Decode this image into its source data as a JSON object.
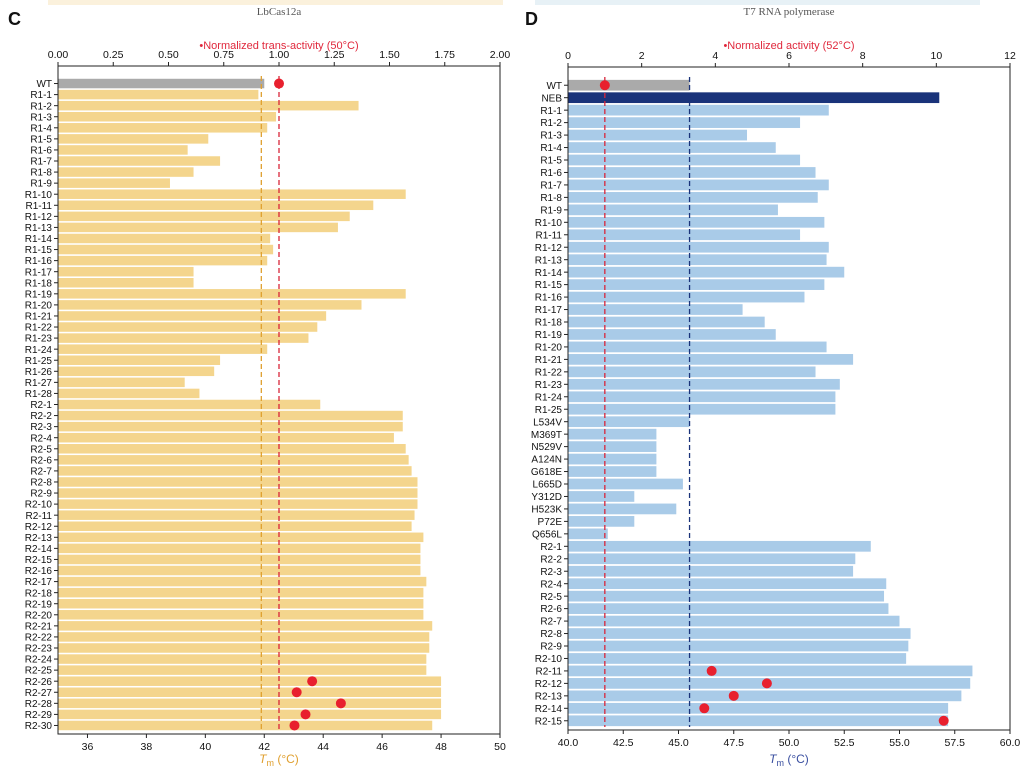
{
  "chart_data": [
    {
      "panel_label": "C",
      "type": "bar",
      "orientation": "horizontal",
      "title": "LbCas12a",
      "top_axis_label": "•Normalized trans-activity (50°C)",
      "xlabel_prefix": "T",
      "xlabel_sub": "m",
      "xlabel_suffix": " (°C)",
      "x_bottom": {
        "lim": [
          35,
          50
        ],
        "ticks": [
          36,
          38,
          40,
          42,
          44,
          46,
          48,
          50
        ]
      },
      "x_top": {
        "lim": [
          0,
          2
        ],
        "ticks": [
          "0.00",
          "0.25",
          "0.50",
          "0.75",
          "1.00",
          "1.25",
          "1.50",
          "1.75",
          "2.00"
        ]
      },
      "bar_base": 35,
      "categories": [
        "WT",
        "R1-1",
        "R1-2",
        "R1-3",
        "R1-4",
        "R1-5",
        "R1-6",
        "R1-7",
        "R1-8",
        "R1-9",
        "R1-10",
        "R1-11",
        "R1-12",
        "R1-13",
        "R1-14",
        "R1-15",
        "R1-16",
        "R1-17",
        "R1-18",
        "R1-19",
        "R1-20",
        "R1-21",
        "R1-22",
        "R1-23",
        "R1-24",
        "R1-25",
        "R1-26",
        "R1-27",
        "R1-28",
        "R2-1",
        "R2-2",
        "R2-3",
        "R2-4",
        "R2-5",
        "R2-6",
        "R2-7",
        "R2-8",
        "R2-9",
        "R2-10",
        "R2-11",
        "R2-12",
        "R2-13",
        "R2-14",
        "R2-15",
        "R2-16",
        "R2-17",
        "R2-18",
        "R2-19",
        "R2-20",
        "R2-21",
        "R2-22",
        "R2-23",
        "R2-24",
        "R2-25",
        "R2-26",
        "R2-27",
        "R2-28",
        "R2-29",
        "R2-30"
      ],
      "tm_values": [
        42.0,
        41.8,
        45.2,
        42.4,
        42.1,
        40.1,
        39.4,
        40.5,
        39.6,
        38.8,
        46.8,
        45.7,
        44.9,
        44.5,
        42.2,
        42.3,
        42.1,
        39.6,
        39.6,
        46.8,
        45.3,
        44.1,
        43.8,
        43.5,
        42.1,
        40.5,
        40.3,
        39.3,
        39.8,
        43.9,
        46.7,
        46.7,
        46.4,
        46.8,
        46.9,
        47.0,
        47.2,
        47.2,
        47.2,
        47.1,
        47.0,
        47.4,
        47.3,
        47.3,
        47.3,
        47.5,
        47.4,
        47.4,
        47.4,
        47.7,
        47.6,
        47.6,
        47.5,
        47.5,
        48.0,
        48.0,
        48.0,
        48.0,
        47.7
      ],
      "highlight": {
        "WT": "#aaaaaa"
      },
      "bar_color": "#f4d58d",
      "activity_points": [
        {
          "category": "WT",
          "value": 1.0
        },
        {
          "category": "R2-26",
          "value": 1.15
        },
        {
          "category": "R2-27",
          "value": 1.08
        },
        {
          "category": "R2-28",
          "value": 1.28
        },
        {
          "category": "R2-29",
          "value": 1.12
        },
        {
          "category": "R2-30",
          "value": 1.07
        }
      ],
      "reference_lines": [
        {
          "axis": "bottom",
          "value": 41.9,
          "color": "#e0a030"
        },
        {
          "axis": "top",
          "value": 1.0,
          "color": "#d8263a"
        }
      ]
    },
    {
      "panel_label": "D",
      "type": "bar",
      "orientation": "horizontal",
      "title": "T7 RNA polymerase",
      "top_axis_label": "•Normalized activity (52°C)",
      "xlabel_prefix": "T",
      "xlabel_sub": "m",
      "xlabel_suffix": " (°C)",
      "x_bottom": {
        "lim": [
          40,
          60
        ],
        "ticks": [
          "40.0",
          "42.5",
          "45.0",
          "47.5",
          "50.0",
          "52.5",
          "55.0",
          "57.5",
          "60.0"
        ]
      },
      "x_top": {
        "lim": [
          0,
          12
        ],
        "ticks": [
          "0",
          "2",
          "4",
          "6",
          "8",
          "10",
          "12"
        ]
      },
      "bar_base": 40,
      "categories": [
        "WT",
        "NEB",
        "R1-1",
        "R1-2",
        "R1-3",
        "R1-4",
        "R1-5",
        "R1-6",
        "R1-7",
        "R1-8",
        "R1-9",
        "R1-10",
        "R1-11",
        "R1-12",
        "R1-13",
        "R1-14",
        "R1-15",
        "R1-16",
        "R1-17",
        "R1-18",
        "R1-19",
        "R1-20",
        "R1-21",
        "R1-22",
        "R1-23",
        "R1-24",
        "R1-25",
        "L534V",
        "M369T",
        "N529V",
        "A124N",
        "G618E",
        "L665D",
        "Y312D",
        "H523K",
        "P72E",
        "Q656L",
        "R2-1",
        "R2-2",
        "R2-3",
        "R2-4",
        "R2-5",
        "R2-6",
        "R2-7",
        "R2-8",
        "R2-9",
        "R2-10",
        "R2-11",
        "R2-12",
        "R2-13",
        "R2-14",
        "R2-15"
      ],
      "tm_values": [
        45.5,
        56.8,
        51.8,
        50.5,
        48.1,
        49.4,
        50.5,
        51.2,
        51.8,
        51.3,
        49.5,
        51.6,
        50.5,
        51.8,
        51.7,
        52.5,
        51.6,
        50.7,
        47.9,
        48.9,
        49.4,
        51.7,
        52.9,
        51.2,
        52.3,
        52.1,
        52.1,
        45.5,
        44.0,
        44.0,
        44.0,
        44.0,
        45.2,
        43.0,
        44.9,
        43.0,
        41.8,
        53.7,
        53.0,
        52.9,
        54.4,
        54.3,
        54.5,
        55.0,
        55.5,
        55.4,
        55.3,
        58.3,
        58.2,
        57.8,
        57.2,
        57.2
      ],
      "highlight": {
        "WT": "#aaaaaa",
        "NEB": "#1a337a"
      },
      "bar_color": "#a9cbe8",
      "activity_points": [
        {
          "category": "WT",
          "value": 1.0
        },
        {
          "category": "R2-11",
          "value": 3.9
        },
        {
          "category": "R2-12",
          "value": 5.4
        },
        {
          "category": "R2-13",
          "value": 4.5
        },
        {
          "category": "R2-14",
          "value": 3.7
        },
        {
          "category": "R2-15",
          "value": 10.2
        }
      ],
      "reference_lines": [
        {
          "axis": "bottom",
          "value": 45.5,
          "color": "#1a337a"
        },
        {
          "axis": "top",
          "value": 1.0,
          "color": "#d8263a"
        }
      ]
    }
  ]
}
